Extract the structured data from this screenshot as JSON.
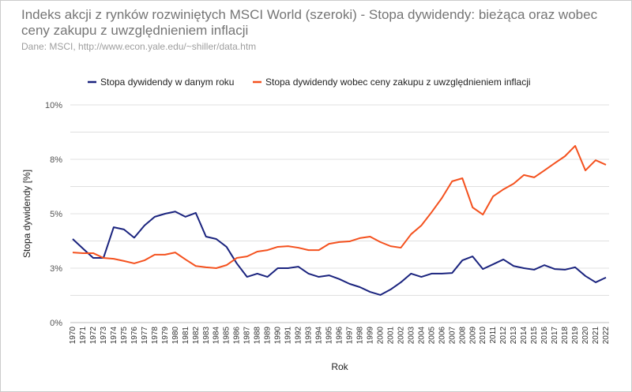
{
  "title": "Indeks akcji z rynków rozwiniętych MSCI World (szeroki) - Stopa dywidendy: bieżąca oraz wobec ceny zakupu z uwzględnieniem inflacji",
  "subtitle": "Dane: MSCI, http://www.econ.yale.edu/~shiller/data.htm",
  "chart_data": {
    "type": "line",
    "title": "Indeks akcji z rynków rozwiniętych MSCI World (szeroki) - Stopa dywidendy: bieżąca oraz wobec ceny zakupu z uwzględnieniem inflacji",
    "xlabel": "Rok",
    "ylabel": "Stopa dywidendy [%]",
    "ylim": [
      0,
      10
    ],
    "yticks": [
      0,
      2.5,
      5,
      7.5,
      10
    ],
    "ytick_labels": [
      "0%",
      "3%",
      "5%",
      "8%",
      "10%"
    ],
    "grid": true,
    "legend": "top",
    "x": [
      1970,
      1971,
      1972,
      1973,
      1974,
      1975,
      1976,
      1977,
      1978,
      1979,
      1980,
      1981,
      1982,
      1983,
      1984,
      1985,
      1986,
      1987,
      1988,
      1989,
      1990,
      1991,
      1992,
      1993,
      1994,
      1995,
      1996,
      1997,
      1998,
      1999,
      2000,
      2001,
      2002,
      2003,
      2004,
      2005,
      2006,
      2007,
      2008,
      2009,
      2010,
      2011,
      2012,
      2013,
      2014,
      2015,
      2016,
      2017,
      2018,
      2019,
      2020,
      2021,
      2022
    ],
    "series": [
      {
        "name": "Stopa dywidendy w danym roku",
        "color": "#1a237e",
        "values": [
          3.84,
          3.4,
          2.97,
          2.97,
          4.38,
          4.28,
          3.9,
          4.46,
          4.86,
          5.0,
          5.1,
          4.86,
          5.04,
          3.95,
          3.84,
          3.48,
          2.72,
          2.1,
          2.25,
          2.1,
          2.5,
          2.5,
          2.57,
          2.25,
          2.1,
          2.17,
          2.0,
          1.78,
          1.63,
          1.41,
          1.27,
          1.52,
          1.85,
          2.25,
          2.1,
          2.25,
          2.25,
          2.28,
          2.86,
          3.04,
          2.46,
          2.68,
          2.9,
          2.6,
          2.5,
          2.43,
          2.64,
          2.46,
          2.43,
          2.54,
          2.14,
          1.85,
          2.07
        ]
      },
      {
        "name": "Stopa dywidendy wobec ceny zakupu z uwzględnieniem inflacji",
        "color": "#f4511e",
        "values": [
          3.22,
          3.19,
          3.19,
          2.97,
          2.93,
          2.83,
          2.72,
          2.86,
          3.12,
          3.12,
          3.22,
          2.9,
          2.6,
          2.54,
          2.5,
          2.64,
          2.97,
          3.04,
          3.26,
          3.33,
          3.48,
          3.51,
          3.44,
          3.33,
          3.33,
          3.62,
          3.7,
          3.73,
          3.88,
          3.95,
          3.7,
          3.51,
          3.44,
          4.06,
          4.46,
          5.07,
          5.72,
          6.49,
          6.63,
          5.29,
          4.96,
          5.8,
          6.12,
          6.38,
          6.78,
          6.67,
          6.99,
          7.32,
          7.64,
          8.12,
          6.99,
          7.46,
          7.25
        ]
      }
    ]
  }
}
